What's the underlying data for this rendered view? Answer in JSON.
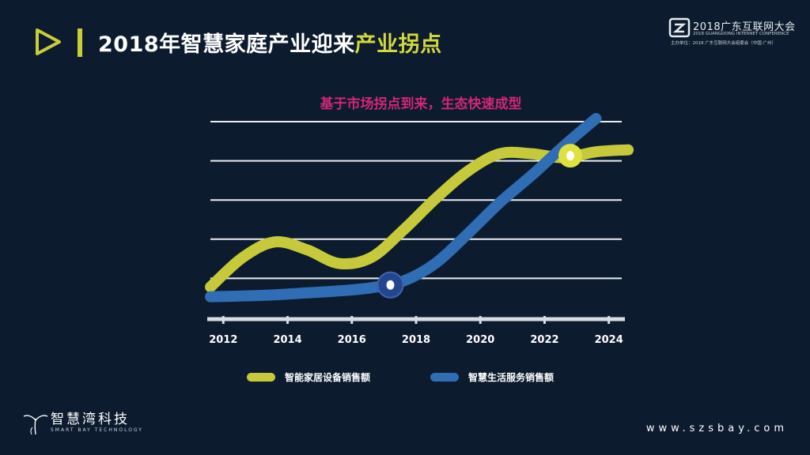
{
  "header": {
    "title_main": "2018年智慧家庭产业迎来",
    "title_highlight": "产业拐点",
    "accent_color": "#c9cd3a"
  },
  "logo": {
    "main": "2018广东互联网大会",
    "sub1": "2018 GUANGDONG INTERNET CONFERENCE",
    "sub2": "主办单位：2018 广东互联网大会组委会（中国·广州）"
  },
  "subtitle": "基于市场拐点到来，生态快速成型",
  "chart_data": {
    "type": "line",
    "title": "",
    "xlabel": "",
    "ylabel": "",
    "x": [
      "2012",
      "2014",
      "2016",
      "2018",
      "2020",
      "2022",
      "2024"
    ],
    "xlim": [
      2011.5,
      2024.5
    ],
    "ylim": [
      0,
      5
    ],
    "grid": true,
    "legend_position": "bottom",
    "series": [
      {
        "name": "智能家居设备销售额",
        "color": "#c6c93a",
        "points": [
          [
            2011.6,
            0.7
          ],
          [
            2012.6,
            1.45
          ],
          [
            2013.6,
            1.85
          ],
          [
            2014.6,
            1.65
          ],
          [
            2015.6,
            1.3
          ],
          [
            2016.6,
            1.45
          ],
          [
            2017.6,
            2.15
          ],
          [
            2018.6,
            2.95
          ],
          [
            2019.6,
            3.65
          ],
          [
            2020.6,
            4.1
          ],
          [
            2021.6,
            4.1
          ],
          [
            2022.6,
            4.0
          ],
          [
            2023.6,
            4.15
          ],
          [
            2024.6,
            4.2
          ]
        ]
      },
      {
        "name": "智慧生活服务销售额",
        "color": "#2f6db4",
        "points": [
          [
            2011.6,
            0.45
          ],
          [
            2012.6,
            0.47
          ],
          [
            2013.6,
            0.5
          ],
          [
            2014.6,
            0.55
          ],
          [
            2015.6,
            0.6
          ],
          [
            2016.6,
            0.68
          ],
          [
            2017.6,
            0.85
          ],
          [
            2018.6,
            1.3
          ],
          [
            2019.6,
            2.05
          ],
          [
            2020.6,
            2.85
          ],
          [
            2021.6,
            3.55
          ],
          [
            2022.6,
            4.3
          ],
          [
            2023.6,
            5.0
          ]
        ]
      }
    ],
    "markers": [
      {
        "x": 2017.2,
        "y": 0.75,
        "series": 1
      },
      {
        "x": 2022.8,
        "y": 4.05,
        "series": 0
      }
    ]
  },
  "legend": [
    {
      "label": "智能家居设备销售额",
      "color": "#c6c93a"
    },
    {
      "label": "智慧生活服务销售额",
      "color": "#2f6db4"
    }
  ],
  "brand": {
    "cn": "智慧湾科技",
    "en": "SMART BAY TECHNOLOGY"
  },
  "website": "www.szsbay.com",
  "icons": [
    "play-triangle-icon",
    "conference-logo-icon",
    "brand-plant-icon"
  ]
}
